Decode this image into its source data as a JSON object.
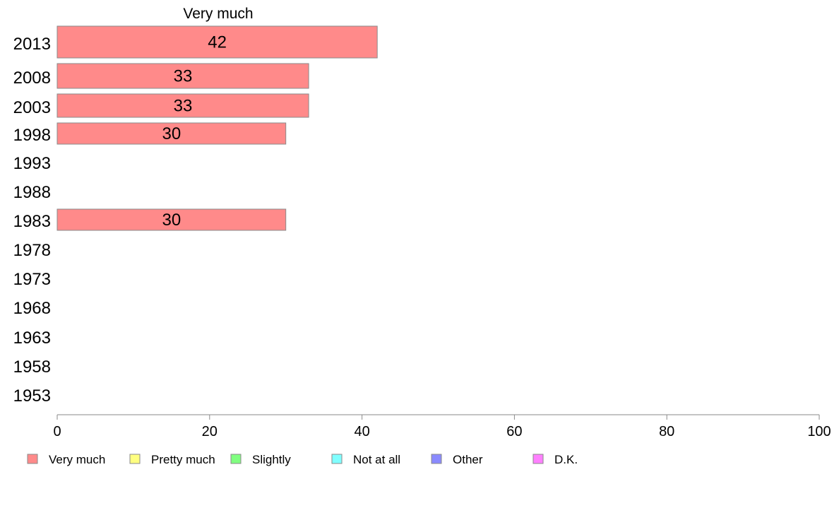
{
  "chart_data": {
    "type": "bar",
    "orientation": "horizontal",
    "title": "Very much",
    "categories": [
      "2013",
      "2008",
      "2003",
      "1998",
      "1993",
      "1988",
      "1983",
      "1978",
      "1973",
      "1968",
      "1963",
      "1958",
      "1953"
    ],
    "series": [
      {
        "name": "Very much",
        "color": "#ff8a8a",
        "values": [
          42,
          33,
          33,
          30,
          null,
          null,
          30,
          null,
          null,
          null,
          null,
          null,
          null
        ],
        "value_labels": [
          "42",
          "33",
          "33",
          "30",
          "",
          "",
          "30",
          "",
          "",
          "",
          "",
          "",
          ""
        ]
      }
    ],
    "xlim": [
      0,
      100
    ],
    "xticks": [
      0,
      20,
      40,
      60,
      80,
      100
    ],
    "grid": false,
    "legend": {
      "placement": "bottom",
      "items": [
        {
          "label": "Very much",
          "color": "#ff8a8a"
        },
        {
          "label": "Pretty much",
          "color": "#ffff80"
        },
        {
          "label": "Slightly",
          "color": "#80ff80"
        },
        {
          "label": "Not at all",
          "color": "#80ffff"
        },
        {
          "label": "Other",
          "color": "#8a8aff"
        },
        {
          "label": "D.K.",
          "color": "#ff80ff"
        }
      ]
    }
  }
}
